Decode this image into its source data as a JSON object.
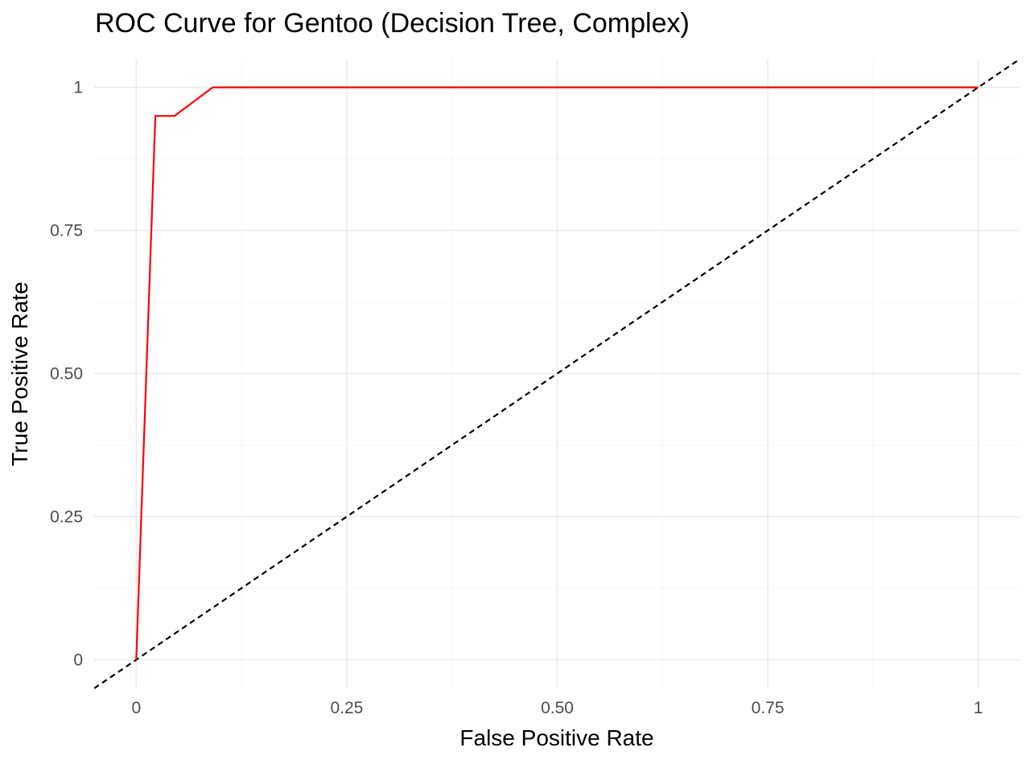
{
  "chart_data": {
    "type": "line",
    "title": "ROC Curve for Gentoo (Decision Tree, Complex)",
    "xlabel": "False Positive Rate",
    "ylabel": "True Positive Rate",
    "xlim": [
      -0.05,
      1.05
    ],
    "ylim": [
      -0.05,
      1.05
    ],
    "grid": true,
    "legend": "none",
    "x_ticks": [
      {
        "value": 0,
        "label": "0"
      },
      {
        "value": 0.25,
        "label": "0.25"
      },
      {
        "value": 0.5,
        "label": "0.50"
      },
      {
        "value": 0.75,
        "label": "0.75"
      },
      {
        "value": 1,
        "label": "1"
      }
    ],
    "y_ticks": [
      {
        "value": 0,
        "label": "0"
      },
      {
        "value": 0.25,
        "label": "0.25"
      },
      {
        "value": 0.5,
        "label": "0.50"
      },
      {
        "value": 0.75,
        "label": "0.75"
      },
      {
        "value": 1,
        "label": "1"
      }
    ],
    "minor_ticks": [
      0.125,
      0.375,
      0.625,
      0.875
    ],
    "series": [
      {
        "color": "#ff0000",
        "style": "solid",
        "x": [
          0,
          0.0227,
          0.0455,
          0.0909,
          1
        ],
        "y": [
          0,
          0.95,
          0.95,
          1,
          1
        ]
      },
      {
        "color": "#000000",
        "style": "dashed",
        "x": [
          -0.05,
          1.05
        ],
        "y": [
          -0.05,
          1.05
        ]
      }
    ]
  }
}
